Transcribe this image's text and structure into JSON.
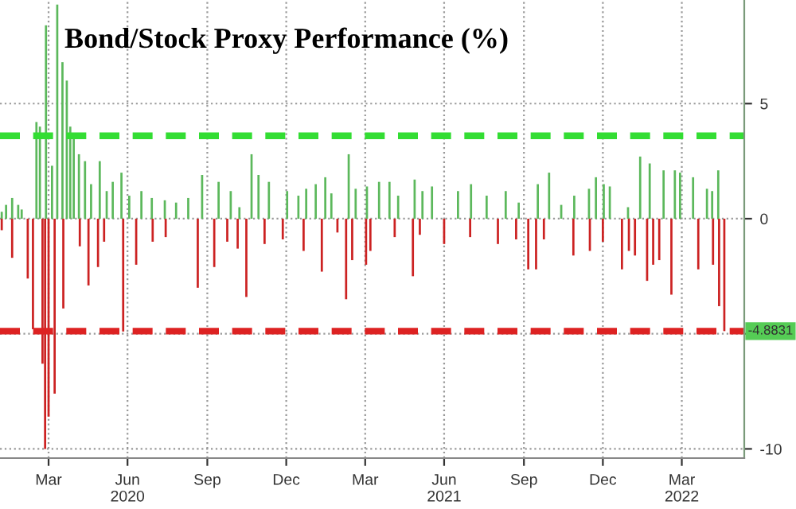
{
  "chart_data": {
    "type": "bar",
    "title": "Bond/Stock Proxy Performance (%)",
    "series": [
      {
        "color": "#5cb85c",
        "x": [
          "2020-01-22",
          "2020-01-27",
          "2020-02-03",
          "2020-02-10",
          "2020-02-14",
          "2020-03-02",
          "2020-03-06",
          "2020-03-13",
          "2020-03-20",
          "2020-03-26",
          "2020-04-01",
          "2020-04-06",
          "2020-04-10",
          "2020-04-14",
          "2020-04-20",
          "2020-04-27",
          "2020-05-04",
          "2020-05-14",
          "2020-05-22",
          "2020-05-29",
          "2020-06-08",
          "2020-06-17",
          "2020-07-01",
          "2020-07-13",
          "2020-07-28",
          "2020-08-10",
          "2020-08-24",
          "2020-09-09",
          "2020-09-28",
          "2020-10-12",
          "2020-10-22",
          "2020-11-05",
          "2020-11-13",
          "2020-11-25",
          "2020-12-16",
          "2020-12-29",
          "2021-01-07",
          "2021-01-18",
          "2021-01-29",
          "2021-02-05",
          "2021-02-25",
          "2021-03-05",
          "2021-03-18",
          "2021-04-01",
          "2021-04-13",
          "2021-04-23",
          "2021-05-12",
          "2021-05-21",
          "2021-06-01",
          "2021-07-01",
          "2021-07-16",
          "2021-08-03",
          "2021-08-25",
          "2021-09-09",
          "2021-10-01",
          "2021-10-14",
          "2021-10-28",
          "2021-11-12",
          "2021-11-29",
          "2021-12-07",
          "2021-12-16",
          "2021-12-23",
          "2022-01-13",
          "2022-01-27",
          "2022-02-07",
          "2022-02-23",
          "2022-03-08",
          "2022-03-14",
          "2022-03-29",
          "2022-04-14",
          "2022-04-20",
          "2022-04-27"
        ],
        "values": [
          0.3,
          0.6,
          0.9,
          0.6,
          0.4,
          4.2,
          4.0,
          8.4,
          2.3,
          9.3,
          6.8,
          6.0,
          4.0,
          3.5,
          2.8,
          2.5,
          1.5,
          2.5,
          1.2,
          1.6,
          2.0,
          1.0,
          1.2,
          0.9,
          0.8,
          0.7,
          0.9,
          1.9,
          1.6,
          1.2,
          0.5,
          2.8,
          1.9,
          1.6,
          1.2,
          1.0,
          1.3,
          1.5,
          1.8,
          1.1,
          2.8,
          1.3,
          1.4,
          1.6,
          1.6,
          1.0,
          1.7,
          1.2,
          1.4,
          1.2,
          1.5,
          1.0,
          1.2,
          0.7,
          1.5,
          2.0,
          0.6,
          1.0,
          1.3,
          1.8,
          1.5,
          1.4,
          0.5,
          2.7,
          2.4,
          2.1,
          2.1,
          2.0,
          1.8,
          1.3,
          1.2,
          2.1
        ]
      },
      {
        "color": "#cc2222",
        "x": [
          "2020-01-22",
          "2020-02-03",
          "2020-02-21",
          "2020-02-27",
          "2020-03-09",
          "2020-03-12",
          "2020-03-16",
          "2020-03-23",
          "2020-04-02",
          "2020-04-21",
          "2020-05-01",
          "2020-05-12",
          "2020-05-19",
          "2020-06-10",
          "2020-06-25",
          "2020-07-14",
          "2020-07-29",
          "2020-09-04",
          "2020-09-23",
          "2020-10-08",
          "2020-10-20",
          "2020-10-30",
          "2020-11-20",
          "2020-12-11",
          "2021-01-04",
          "2021-01-25",
          "2021-02-12",
          "2021-02-22",
          "2021-03-01",
          "2021-03-17",
          "2021-03-22",
          "2021-04-19",
          "2021-05-10",
          "2021-05-18",
          "2021-06-15",
          "2021-07-15",
          "2021-08-16",
          "2021-09-06",
          "2021-09-20",
          "2021-09-29",
          "2021-10-08",
          "2021-11-11",
          "2021-11-30",
          "2021-12-15",
          "2022-01-06",
          "2022-01-14",
          "2022-01-21",
          "2022-02-04",
          "2022-02-11",
          "2022-02-18",
          "2022-03-04",
          "2022-04-04",
          "2022-04-21",
          "2022-04-28",
          "2022-05-04"
        ],
        "values": [
          -0.5,
          -1.7,
          -2.6,
          -4.8,
          -6.3,
          -10.0,
          -8.6,
          -7.6,
          -3.9,
          -1.2,
          -2.9,
          -2.1,
          -1.0,
          -4.9,
          -2.0,
          -1.0,
          -0.8,
          -3.0,
          -2.1,
          -1.0,
          -1.3,
          -3.4,
          -1.1,
          -0.9,
          -1.4,
          -2.3,
          -0.6,
          -3.5,
          -1.8,
          -2.0,
          -1.4,
          -0.8,
          -2.5,
          -0.7,
          -1.1,
          -0.8,
          -1.1,
          -0.9,
          -2.2,
          -2.2,
          -0.9,
          -1.6,
          -1.4,
          -1.0,
          -2.2,
          -1.4,
          -1.6,
          -2.7,
          -2.0,
          -1.8,
          -3.3,
          -2.2,
          -2.0,
          -3.8,
          -4.8831
        ]
      }
    ],
    "xlim": [
      "2020-01-20",
      "2022-05-27"
    ],
    "xticks": [
      {
        "value": "2020-03-16",
        "label": "Mar"
      },
      {
        "value": "2020-06-15",
        "label": "Jun\n2020"
      },
      {
        "value": "2020-09-15",
        "label": "Sep"
      },
      {
        "value": "2020-12-15",
        "label": "Dec"
      },
      {
        "value": "2021-03-16",
        "label": "Mar"
      },
      {
        "value": "2021-06-15",
        "label": "Jun\n2021"
      },
      {
        "value": "2021-09-15",
        "label": "Sep"
      },
      {
        "value": "2021-12-15",
        "label": "Dec"
      },
      {
        "value": "2022-03-16",
        "label": "Mar\n2022"
      }
    ],
    "ylim": [
      -10.4,
      9.5
    ],
    "yticks": [
      -10,
      {
        "value": -5,
        "label": null
      },
      0,
      5
    ],
    "grid": true,
    "ref_lines": [
      {
        "axis": "y",
        "value": 3.6,
        "color": "#33dd33",
        "line_style": "dashed"
      },
      {
        "axis": "y",
        "value": -4.8831,
        "label": "-4.8831",
        "color": "#dd2222",
        "line_style": "dashed"
      }
    ]
  }
}
